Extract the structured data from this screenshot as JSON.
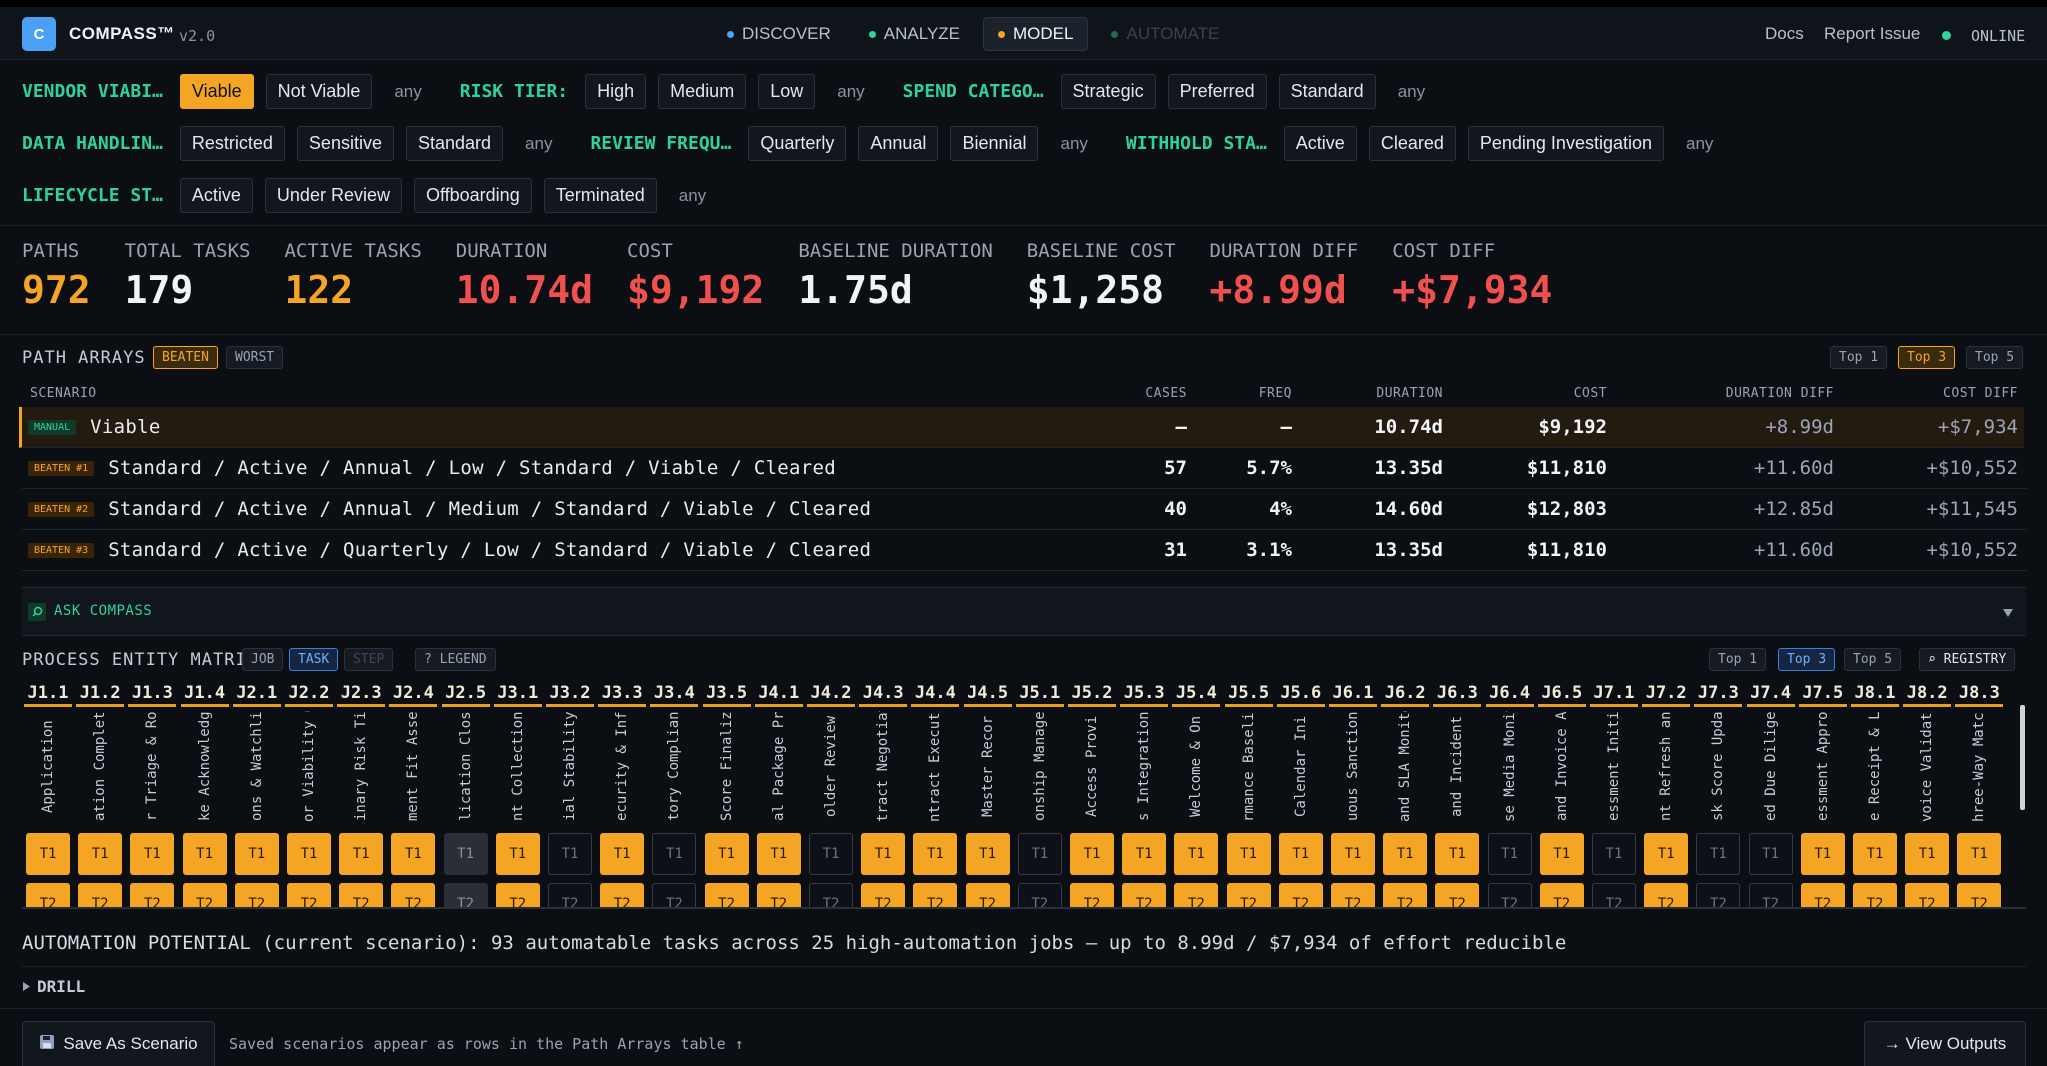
{
  "header": {
    "logo": "C",
    "brand": "COMPASS™",
    "version": "v2.0",
    "nav": [
      {
        "label": "DISCOVER",
        "dot": "#4da3ff",
        "active": false,
        "disabled": false
      },
      {
        "label": "ANALYZE",
        "dot": "#2fd39a",
        "active": false,
        "disabled": false
      },
      {
        "label": "MODEL",
        "dot": "#f5a524",
        "active": true,
        "disabled": false
      },
      {
        "label": "AUTOMATE",
        "dot": "#1f6b4c",
        "active": false,
        "disabled": true
      }
    ],
    "links": [
      "Docs",
      "Report Issue"
    ],
    "status": "ONLINE"
  },
  "filters": [
    [
      {
        "label": "VENDOR VIABI…",
        "options": [
          "Viable",
          "Not Viable"
        ],
        "any": "any",
        "selected": 0
      },
      {
        "label": "RISK TIER:",
        "options": [
          "High",
          "Medium",
          "Low"
        ],
        "any": "any"
      },
      {
        "label": "SPEND CATEGO…",
        "options": [
          "Strategic",
          "Preferred",
          "Standard"
        ],
        "any": "any"
      }
    ],
    [
      {
        "label": "DATA HANDLIN…",
        "options": [
          "Restricted",
          "Sensitive",
          "Standard"
        ],
        "any": "any"
      },
      {
        "label": "REVIEW FREQU…",
        "options": [
          "Quarterly",
          "Annual",
          "Biennial"
        ],
        "any": "any"
      },
      {
        "label": "WITHHOLD STA…",
        "options": [
          "Active",
          "Cleared",
          "Pending Investigation"
        ],
        "any": "any"
      }
    ],
    [
      {
        "label": "LIFECYCLE ST…",
        "options": [
          "Active",
          "Under Review",
          "Offboarding",
          "Terminated"
        ],
        "any": "any"
      }
    ]
  ],
  "stats": [
    {
      "label": "PATHS",
      "value": "972",
      "color": "#f5a524"
    },
    {
      "label": "TOTAL TASKS",
      "value": "179",
      "color": "#f1f3f6"
    },
    {
      "label": "ACTIVE TASKS",
      "value": "122",
      "color": "#f5a524"
    },
    {
      "label": "DURATION",
      "value": "10.74d",
      "color": "#f0514f"
    },
    {
      "label": "COST",
      "value": "$9,192",
      "color": "#f0514f"
    },
    {
      "label": "BASELINE DURATION",
      "value": "1.75d",
      "color": "#f1f3f6"
    },
    {
      "label": "BASELINE COST",
      "value": "$1,258",
      "color": "#f1f3f6"
    },
    {
      "label": "DURATION DIFF",
      "value": "+8.99d",
      "color": "#f0514f"
    },
    {
      "label": "COST DIFF",
      "value": "+$7,934",
      "color": "#f0514f"
    }
  ],
  "path_arrays": {
    "title": "PATH ARRAYS",
    "modes": [
      "BEATEN",
      "WORST"
    ],
    "active_mode": 0,
    "top": [
      "Top 1",
      "Top 3",
      "Top 5"
    ],
    "active_top": 1,
    "columns": [
      "SCENARIO",
      "CASES",
      "FREQ",
      "DURATION",
      "COST",
      "DURATION DIFF",
      "COST DIFF"
    ],
    "rows": [
      {
        "kind": "manual",
        "badge": "MANUAL",
        "scenario": "Viable",
        "cells": [
          "—",
          "—",
          "10.74d",
          "$9,192",
          "+8.99d",
          "+$7,934"
        ]
      },
      {
        "kind": "beaten",
        "badge": "BEATEN #1",
        "scenario": "Standard / Active / Annual / Low / Standard / Viable / Cleared",
        "cells": [
          "57",
          "5.7%",
          "13.35d",
          "$11,810",
          "+11.60d",
          "+$10,552"
        ]
      },
      {
        "kind": "beaten",
        "badge": "BEATEN #2",
        "scenario": "Standard / Active / Annual / Medium / Standard / Viable / Cleared",
        "cells": [
          "40",
          "4%",
          "14.60d",
          "$12,803",
          "+12.85d",
          "+$11,545"
        ]
      },
      {
        "kind": "beaten",
        "badge": "BEATEN #3",
        "scenario": "Standard / Active / Quarterly / Low / Standard / Viable / Cleared",
        "cells": [
          "31",
          "3.1%",
          "13.35d",
          "$11,810",
          "+11.60d",
          "+$10,552"
        ]
      }
    ]
  },
  "ask": "ASK COMPASS",
  "matrix": {
    "title": "PROCESS ENTITY MATRIX",
    "views": [
      "JOB",
      "TASK",
      "STEP"
    ],
    "active_view": 1,
    "disabled_view": 2,
    "legend": "? LEGEND",
    "top": [
      "Top 1",
      "Top 3",
      "Top 5"
    ],
    "active_top": 1,
    "registry": "⌕ REGISTRY",
    "task_rows": [
      "T1",
      "T2"
    ],
    "columns": [
      {
        "id": "J1.1",
        "name": "Application",
        "state": "on"
      },
      {
        "id": "J1.2",
        "name": "ation Complet",
        "state": "on"
      },
      {
        "id": "J1.3",
        "name": "r Triage & Ro",
        "state": "on"
      },
      {
        "id": "J1.4",
        "name": "ke Acknowledg",
        "state": "on"
      },
      {
        "id": "J2.1",
        "name": "ons & Watchli",
        "state": "on"
      },
      {
        "id": "J2.2",
        "name": "or Viability C",
        "state": "on"
      },
      {
        "id": "J2.3",
        "name": "inary Risk Ti",
        "state": "on"
      },
      {
        "id": "J2.4",
        "name": "ment Fit Asse",
        "state": "on"
      },
      {
        "id": "J2.5",
        "name": "lication Clos",
        "state": "disabled"
      },
      {
        "id": "J3.1",
        "name": "nt Collection",
        "state": "on"
      },
      {
        "id": "J3.2",
        "name": "ial Stability",
        "state": "off"
      },
      {
        "id": "J3.3",
        "name": "ecurity & Inf",
        "state": "on"
      },
      {
        "id": "J3.4",
        "name": "tory Complian",
        "state": "off"
      },
      {
        "id": "J3.5",
        "name": "Score Finaliz",
        "state": "on"
      },
      {
        "id": "J4.1",
        "name": "al Package Pr",
        "state": "on"
      },
      {
        "id": "J4.2",
        "name": "older Review",
        "state": "off"
      },
      {
        "id": "J4.3",
        "name": "tract Negotiat",
        "state": "on"
      },
      {
        "id": "J4.4",
        "name": "ntract Executi",
        "state": "on"
      },
      {
        "id": "J4.5",
        "name": "Master Recor",
        "state": "on"
      },
      {
        "id": "J5.1",
        "name": "onship Manage",
        "state": "off"
      },
      {
        "id": "J5.2",
        "name": "Access Provi",
        "state": "on"
      },
      {
        "id": "J5.3",
        "name": "s Integration",
        "state": "on"
      },
      {
        "id": "J5.4",
        "name": "Welcome & On",
        "state": "on"
      },
      {
        "id": "J5.5",
        "name": "rmance Baselin",
        "state": "on"
      },
      {
        "id": "J5.6",
        "name": "Calendar Ini",
        "state": "on"
      },
      {
        "id": "J6.1",
        "name": "uous Sanction",
        "state": "on"
      },
      {
        "id": "J6.2",
        "name": "and SLA Monito",
        "state": "on"
      },
      {
        "id": "J6.3",
        "name": "and Incident",
        "state": "on"
      },
      {
        "id": "J6.4",
        "name": "se Media Monit",
        "state": "off"
      },
      {
        "id": "J6.5",
        "name": "and Invoice A",
        "state": "on"
      },
      {
        "id": "J7.1",
        "name": "essment Initi",
        "state": "off"
      },
      {
        "id": "J7.2",
        "name": "nt Refresh an",
        "state": "on"
      },
      {
        "id": "J7.3",
        "name": "sk Score Upda",
        "state": "off"
      },
      {
        "id": "J7.4",
        "name": "ed Due Dilige",
        "state": "off"
      },
      {
        "id": "J7.5",
        "name": "essment Appro",
        "state": "on"
      },
      {
        "id": "J8.1",
        "name": "e Receipt & L",
        "state": "on"
      },
      {
        "id": "J8.2",
        "name": "voice Validati",
        "state": "on"
      },
      {
        "id": "J8.3",
        "name": "hree-Way Match",
        "state": "on"
      }
    ]
  },
  "automation": "AUTOMATION POTENTIAL (current scenario): 93 automatable tasks across 25 high-automation jobs — up to 8.99d / $7,934 of effort reducible",
  "drill": "DRILL",
  "footer": {
    "save": "Save As Scenario",
    "note": "Saved scenarios appear as rows in the Path Arrays table ↑",
    "outputs": "→ View Outputs"
  }
}
